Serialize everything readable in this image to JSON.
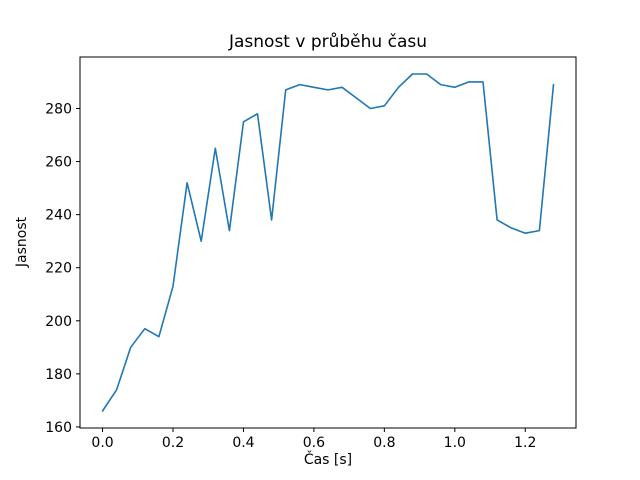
{
  "window": {
    "background_color": "#ffffff"
  },
  "chart_data": {
    "type": "line",
    "title": "Jasnost v průběhu času",
    "xlabel": "Čas [s]",
    "ylabel": "Jasnost",
    "legend": "none",
    "grid": false,
    "line_color": "#1f77b4",
    "xlim": [
      -0.064,
      1.344
    ],
    "ylim": [
      159.6,
      299.4
    ],
    "xticks": [
      0.0,
      0.2,
      0.4,
      0.6,
      0.8,
      1.0,
      1.2
    ],
    "yticks": [
      160,
      180,
      200,
      220,
      240,
      260,
      280
    ],
    "x": [
      0.0,
      0.04,
      0.08,
      0.12,
      0.16,
      0.2,
      0.24,
      0.28,
      0.32,
      0.36,
      0.4,
      0.44,
      0.48,
      0.52,
      0.56,
      0.6,
      0.64,
      0.68,
      0.72,
      0.76,
      0.8,
      0.84,
      0.88,
      0.92,
      0.96,
      1.0,
      1.04,
      1.08,
      1.12,
      1.16,
      1.2,
      1.24,
      1.28
    ],
    "y": [
      166,
      174,
      190,
      197,
      194,
      213,
      252,
      230,
      265,
      234,
      275,
      278,
      238,
      287,
      289,
      288,
      287,
      288,
      284,
      280,
      281,
      288,
      293,
      293,
      289,
      288,
      290,
      290,
      238,
      235,
      233,
      234,
      289
    ]
  }
}
